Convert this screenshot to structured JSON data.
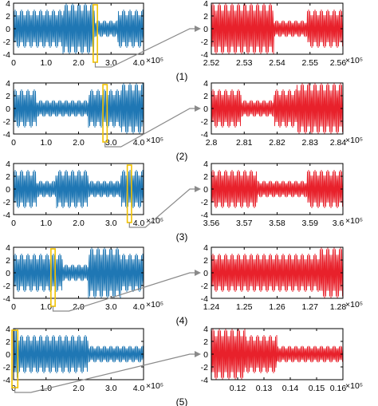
{
  "figure": {
    "panel_count": 5
  },
  "colors": {
    "left_signal": "#1f77b4",
    "right_signal": "#e8212b",
    "highlight_box": "#f2c200",
    "arrow": "#8a8a8a",
    "axis": "#000000"
  },
  "chart_data": [
    {
      "panel": 1,
      "side": "left",
      "type": "line",
      "caption": "(1)",
      "xlim": [
        0,
        400000
      ],
      "ylim": [
        -4,
        4
      ],
      "x_ticks": [
        "0",
        "1.0",
        "2.0",
        "3.0",
        "4.0"
      ],
      "x_tick_values": [
        0,
        100000,
        200000,
        300000,
        400000
      ],
      "y_ticks": [
        "4",
        "2",
        "0",
        "-2",
        "-4"
      ],
      "x_exponent": "×10⁵",
      "segments": [
        {
          "x_start": 0,
          "x_end": 150000,
          "amplitude": 3
        },
        {
          "x_start": 150000,
          "x_end": 250000,
          "amplitude": 4
        },
        {
          "x_start": 250000,
          "x_end": 320000,
          "amplitude": 1.3
        },
        {
          "x_start": 320000,
          "x_end": 400000,
          "amplitude": 3
        }
      ],
      "highlight_window": [
        245000,
        258000
      ]
    },
    {
      "panel": 1,
      "side": "right",
      "type": "line",
      "xlim": [
        252000,
        256000
      ],
      "ylim": [
        -4,
        4
      ],
      "x_ticks": [
        "2.52",
        "2.53",
        "2.54",
        "2.55",
        "2.56"
      ],
      "x_tick_values": [
        252000,
        253000,
        254000,
        255000,
        256000
      ],
      "y_ticks": [
        "4",
        "2",
        "0",
        "-2",
        "-4"
      ],
      "x_exponent": "×10⁵",
      "segments": [
        {
          "x_start": 252000,
          "x_end": 253900,
          "amplitude": 4
        },
        {
          "x_start": 253900,
          "x_end": 254900,
          "amplitude": 1.3
        },
        {
          "x_start": 254900,
          "x_end": 256000,
          "amplitude": 3
        }
      ]
    },
    {
      "panel": 2,
      "side": "left",
      "type": "line",
      "caption": "(2)",
      "xlim": [
        0,
        400000
      ],
      "ylim": [
        -4,
        4
      ],
      "x_ticks": [
        "0",
        "1.0",
        "2.0",
        "3.0",
        "4.0"
      ],
      "x_tick_values": [
        0,
        100000,
        200000,
        300000,
        400000
      ],
      "y_ticks": [
        "4",
        "2",
        "0",
        "-2",
        "-4"
      ],
      "x_exponent": "×10⁵",
      "segments": [
        {
          "x_start": 0,
          "x_end": 70000,
          "amplitude": 3
        },
        {
          "x_start": 70000,
          "x_end": 230000,
          "amplitude": 1.3
        },
        {
          "x_start": 230000,
          "x_end": 330000,
          "amplitude": 3
        },
        {
          "x_start": 330000,
          "x_end": 400000,
          "amplitude": 4
        }
      ],
      "highlight_window": [
        275000,
        288000
      ]
    },
    {
      "panel": 2,
      "side": "right",
      "type": "line",
      "xlim": [
        280000,
        284000
      ],
      "ylim": [
        -4,
        4
      ],
      "x_ticks": [
        "2.8",
        "2.81",
        "2.82",
        "2.83",
        "2.84"
      ],
      "x_tick_values": [
        280000,
        281000,
        282000,
        283000,
        284000
      ],
      "y_ticks": [
        "4",
        "2",
        "0",
        "-2",
        "-4"
      ],
      "x_exponent": "×10⁵",
      "segments": [
        {
          "x_start": 280000,
          "x_end": 280900,
          "amplitude": 3
        },
        {
          "x_start": 280900,
          "x_end": 281900,
          "amplitude": 1.3
        },
        {
          "x_start": 281900,
          "x_end": 282600,
          "amplitude": 3
        },
        {
          "x_start": 282600,
          "x_end": 284000,
          "amplitude": 4
        }
      ]
    },
    {
      "panel": 3,
      "side": "left",
      "type": "line",
      "caption": "(3)",
      "xlim": [
        0,
        400000
      ],
      "ylim": [
        -4,
        4
      ],
      "x_ticks": [
        "0",
        "1.0",
        "2.0",
        "3.0",
        "4.0"
      ],
      "x_tick_values": [
        0,
        100000,
        200000,
        300000,
        400000
      ],
      "y_ticks": [
        "4",
        "2",
        "0",
        "-2",
        "-4"
      ],
      "x_exponent": "×10⁵",
      "segments": [
        {
          "x_start": 0,
          "x_end": 70000,
          "amplitude": 3
        },
        {
          "x_start": 70000,
          "x_end": 130000,
          "amplitude": 1.3
        },
        {
          "x_start": 130000,
          "x_end": 230000,
          "amplitude": 3
        },
        {
          "x_start": 230000,
          "x_end": 330000,
          "amplitude": 1.3
        },
        {
          "x_start": 330000,
          "x_end": 400000,
          "amplitude": 3
        }
      ],
      "highlight_window": [
        350000,
        363000
      ]
    },
    {
      "panel": 3,
      "side": "right",
      "type": "line",
      "xlim": [
        356000,
        360000
      ],
      "ylim": [
        -4,
        4
      ],
      "x_ticks": [
        "3.56",
        "3.57",
        "3.58",
        "3.59",
        "3.6"
      ],
      "x_tick_values": [
        356000,
        357000,
        358000,
        359000,
        360000
      ],
      "y_ticks": [
        "4",
        "2",
        "0",
        "-2",
        "-4"
      ],
      "x_exponent": "×10⁵",
      "segments": [
        {
          "x_start": 356000,
          "x_end": 357400,
          "amplitude": 3
        },
        {
          "x_start": 357400,
          "x_end": 358900,
          "amplitude": 1.3
        },
        {
          "x_start": 358900,
          "x_end": 360000,
          "amplitude": 3
        }
      ]
    },
    {
      "panel": 4,
      "side": "left",
      "type": "line",
      "caption": "(4)",
      "xlim": [
        0,
        400000
      ],
      "ylim": [
        -4,
        4
      ],
      "x_ticks": [
        "0",
        "1.0",
        "2.0",
        "3.0",
        "4.0"
      ],
      "x_tick_values": [
        0,
        100000,
        200000,
        300000,
        400000
      ],
      "y_ticks": [
        "4",
        "2",
        "0",
        "-2",
        "-4"
      ],
      "x_exponent": "×10⁵",
      "segments": [
        {
          "x_start": 0,
          "x_end": 150000,
          "amplitude": 3
        },
        {
          "x_start": 150000,
          "x_end": 230000,
          "amplitude": 1.3
        },
        {
          "x_start": 230000,
          "x_end": 330000,
          "amplitude": 4
        },
        {
          "x_start": 330000,
          "x_end": 400000,
          "amplitude": 3
        }
      ],
      "highlight_window": [
        115000,
        128000
      ]
    },
    {
      "panel": 4,
      "side": "right",
      "type": "line",
      "xlim": [
        124000,
        128000
      ],
      "ylim": [
        -4,
        4
      ],
      "x_ticks": [
        "1.24",
        "1.25",
        "1.26",
        "1.27",
        "1.28"
      ],
      "x_tick_values": [
        124000,
        125000,
        126000,
        127000,
        128000
      ],
      "y_ticks": [
        "4",
        "2",
        "0",
        "-2",
        "-4"
      ],
      "x_exponent": "×10⁵",
      "segments": [
        {
          "x_start": 124000,
          "x_end": 127300,
          "amplitude": 3
        },
        {
          "x_start": 127300,
          "x_end": 128000,
          "amplitude": 4
        }
      ]
    },
    {
      "panel": 5,
      "side": "left",
      "type": "line",
      "caption": "(5)",
      "xlim": [
        0,
        400000
      ],
      "ylim": [
        -4,
        4
      ],
      "x_ticks": [
        "0",
        "1.0",
        "2.0",
        "3.0",
        "4.0"
      ],
      "x_tick_values": [
        0,
        100000,
        200000,
        300000,
        400000
      ],
      "y_ticks": [
        "4",
        "2",
        "0",
        "-2",
        "-4"
      ],
      "x_exponent": "×10⁵",
      "segments": [
        {
          "x_start": 0,
          "x_end": 13000,
          "amplitude": 4
        },
        {
          "x_start": 13000,
          "x_end": 230000,
          "amplitude": 3
        },
        {
          "x_start": 230000,
          "x_end": 400000,
          "amplitude": 1.3
        }
      ],
      "highlight_window": [
        -5000,
        13000
      ]
    },
    {
      "panel": 5,
      "side": "right",
      "type": "line",
      "xlim": [
        11000,
        16000
      ],
      "ylim": [
        -4,
        4
      ],
      "x_ticks": [
        "0.12",
        "0.13",
        "0.14",
        "0.15",
        "0.16"
      ],
      "x_tick_values": [
        12000,
        13000,
        14000,
        15000,
        16000
      ],
      "y_ticks": [
        "4",
        "2",
        "0",
        "-2",
        "-4"
      ],
      "x_exponent": "×10⁵",
      "segments": [
        {
          "x_start": 11000,
          "x_end": 12300,
          "amplitude": 4
        },
        {
          "x_start": 12300,
          "x_end": 13500,
          "amplitude": 3
        },
        {
          "x_start": 13500,
          "x_end": 16000,
          "amplitude": 1.3
        }
      ]
    }
  ]
}
